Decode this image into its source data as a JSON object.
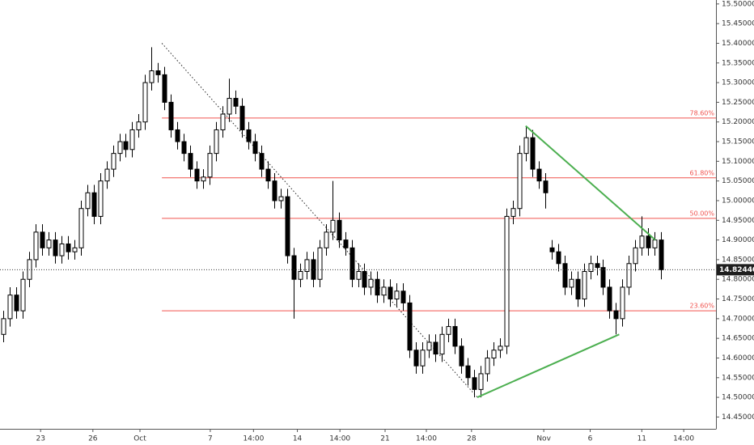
{
  "chart_data": {
    "type": "candlestick",
    "open": [
      14.66,
      14.7,
      14.76,
      14.72,
      14.8,
      14.85,
      14.92,
      14.88,
      14.9,
      14.86,
      14.89,
      14.87,
      14.88,
      14.98,
      15.02,
      14.96,
      15.05,
      15.08,
      15.12,
      15.15,
      15.13,
      15.18,
      15.2,
      15.3,
      15.33,
      15.32,
      15.25,
      15.18,
      15.15,
      15.12,
      15.08,
      15.05,
      15.06,
      15.12,
      15.18,
      15.22,
      15.26,
      15.24,
      15.18,
      15.15,
      15.12,
      15.08,
      15.05,
      15.0,
      15.01,
      14.86,
      14.8,
      14.82,
      14.85,
      14.8,
      14.88,
      14.92,
      14.95,
      14.9,
      14.88,
      14.8,
      14.82,
      14.78,
      14.8,
      14.76,
      14.78,
      14.75,
      14.77,
      14.74,
      14.62,
      14.58,
      14.62,
      14.64,
      14.61,
      14.66,
      14.68,
      14.63,
      14.58,
      14.55,
      14.52,
      14.56,
      14.6,
      14.62,
      14.63,
      14.96,
      14.98,
      15.12,
      15.16,
      15.08,
      15.05,
      14.88,
      14.87,
      14.84,
      14.78,
      14.8,
      14.75,
      14.82,
      14.84,
      14.83,
      14.78,
      14.72,
      14.7,
      14.78,
      14.84,
      14.88,
      14.91,
      14.88,
      14.9
    ],
    "high": [
      14.72,
      14.78,
      14.78,
      14.82,
      14.87,
      14.94,
      14.94,
      14.92,
      14.92,
      14.91,
      14.91,
      14.9,
      15.0,
      15.04,
      15.04,
      15.07,
      15.1,
      15.14,
      15.17,
      15.17,
      15.2,
      15.22,
      15.32,
      15.39,
      15.35,
      15.34,
      15.27,
      15.2,
      15.17,
      15.14,
      15.1,
      15.08,
      15.14,
      15.2,
      15.24,
      15.31,
      15.28,
      15.26,
      15.2,
      15.17,
      15.14,
      15.1,
      15.07,
      15.03,
      15.03,
      14.88,
      14.84,
      14.87,
      14.87,
      14.9,
      14.94,
      15.05,
      14.97,
      14.92,
      14.9,
      14.84,
      14.84,
      14.82,
      14.82,
      14.8,
      14.8,
      14.79,
      14.79,
      14.76,
      14.64,
      14.64,
      14.66,
      14.66,
      14.68,
      14.7,
      14.7,
      14.65,
      14.6,
      14.57,
      14.58,
      14.62,
      14.64,
      14.65,
      14.98,
      15.0,
      15.14,
      15.19,
      15.18,
      15.1,
      15.07,
      14.9,
      14.89,
      14.86,
      14.82,
      14.82,
      14.84,
      14.86,
      14.86,
      14.85,
      14.8,
      14.74,
      14.8,
      14.86,
      14.9,
      14.96,
      14.93,
      14.92,
      14.92
    ],
    "low": [
      14.64,
      14.68,
      14.7,
      14.7,
      14.78,
      14.83,
      14.86,
      14.86,
      14.84,
      14.84,
      14.85,
      14.85,
      14.86,
      14.96,
      14.94,
      14.94,
      15.03,
      15.06,
      15.1,
      15.11,
      15.11,
      15.16,
      15.18,
      15.28,
      15.3,
      15.23,
      15.16,
      15.13,
      15.1,
      15.06,
      15.03,
      15.03,
      15.04,
      15.1,
      15.16,
      15.2,
      15.22,
      15.16,
      15.13,
      15.1,
      15.06,
      15.03,
      14.98,
      14.98,
      14.84,
      14.7,
      14.78,
      14.8,
      14.78,
      14.78,
      14.86,
      14.9,
      14.88,
      14.86,
      14.78,
      14.78,
      14.76,
      14.76,
      14.74,
      14.74,
      14.73,
      14.73,
      14.72,
      14.6,
      14.56,
      14.56,
      14.6,
      14.59,
      14.59,
      14.64,
      14.61,
      14.56,
      14.53,
      14.5,
      14.5,
      14.54,
      14.58,
      14.6,
      14.61,
      14.94,
      14.96,
      15.1,
      15.06,
      15.03,
      14.98,
      14.85,
      14.82,
      14.76,
      14.76,
      14.73,
      14.73,
      14.8,
      14.81,
      14.76,
      14.7,
      14.66,
      14.68,
      14.76,
      14.82,
      14.86,
      14.86,
      14.86,
      14.8
    ],
    "close": [
      14.7,
      14.76,
      14.72,
      14.8,
      14.85,
      14.92,
      14.88,
      14.9,
      14.86,
      14.89,
      14.87,
      14.88,
      14.98,
      15.02,
      14.96,
      15.05,
      15.08,
      15.12,
      15.15,
      15.13,
      15.18,
      15.2,
      15.3,
      15.33,
      15.32,
      15.25,
      15.18,
      15.15,
      15.12,
      15.08,
      15.05,
      15.06,
      15.12,
      15.18,
      15.22,
      15.26,
      15.24,
      15.18,
      15.15,
      15.12,
      15.08,
      15.05,
      15.0,
      15.01,
      14.86,
      14.8,
      14.82,
      14.85,
      14.8,
      14.88,
      14.92,
      14.95,
      14.9,
      14.88,
      14.8,
      14.82,
      14.78,
      14.8,
      14.76,
      14.78,
      14.75,
      14.77,
      14.74,
      14.62,
      14.58,
      14.62,
      14.64,
      14.61,
      14.66,
      14.68,
      14.63,
      14.58,
      14.55,
      14.52,
      14.56,
      14.6,
      14.62,
      14.63,
      14.96,
      14.98,
      15.12,
      15.16,
      15.08,
      15.05,
      15.02,
      14.87,
      14.84,
      14.78,
      14.8,
      14.75,
      14.82,
      14.84,
      14.83,
      14.78,
      14.72,
      14.7,
      14.78,
      14.84,
      14.88,
      14.91,
      14.88,
      14.9,
      14.8244
    ],
    "up_color": "#ffffff",
    "down_color": "#000000",
    "xlim": [
      -0.5,
      110.5
    ],
    "xticks": [
      {
        "value": 5.8,
        "label": "23"
      },
      {
        "value": 13.9,
        "label": "26"
      },
      {
        "value": 21.2,
        "label": "Oct"
      },
      {
        "value": 32.1,
        "label": "7"
      },
      {
        "value": 38.8,
        "label": "14:00"
      },
      {
        "value": 45.6,
        "label": "14"
      },
      {
        "value": 52.2,
        "label": "14:00"
      },
      {
        "value": 59.2,
        "label": "21"
      },
      {
        "value": 65.6,
        "label": "14:00"
      },
      {
        "value": 72.6,
        "label": "28"
      },
      {
        "value": 83.8,
        "label": "Nov"
      },
      {
        "value": 91.0,
        "label": "6"
      },
      {
        "value": 99.0,
        "label": "11"
      },
      {
        "value": 105.5,
        "label": "14:00"
      }
    ],
    "ylim": [
      14.42,
      15.51
    ],
    "yticks": [
      {
        "value": 14.45,
        "label": "14.45000"
      },
      {
        "value": 14.5,
        "label": "14.50000"
      },
      {
        "value": 14.55,
        "label": "14.55000"
      },
      {
        "value": 14.6,
        "label": "14.60000"
      },
      {
        "value": 14.65,
        "label": "14.65000"
      },
      {
        "value": 14.7,
        "label": "14.70000"
      },
      {
        "value": 14.75,
        "label": "14.75000"
      },
      {
        "value": 14.8,
        "label": "14.80000"
      },
      {
        "value": 14.85,
        "label": "14.85000"
      },
      {
        "value": 14.9,
        "label": "14.90000"
      },
      {
        "value": 14.95,
        "label": "14.95000"
      },
      {
        "value": 15.0,
        "label": "15.00000"
      },
      {
        "value": 15.05,
        "label": "15.05000"
      },
      {
        "value": 15.1,
        "label": "15.10000"
      },
      {
        "value": 15.15,
        "label": "15.15000"
      },
      {
        "value": 15.2,
        "label": "15.20000"
      },
      {
        "value": 15.25,
        "label": "15.25000"
      },
      {
        "value": 15.3,
        "label": "15.30000"
      },
      {
        "value": 15.35,
        "label": "15.35000"
      },
      {
        "value": 15.4,
        "label": "15.40000"
      },
      {
        "value": 15.45,
        "label": "15.45000"
      },
      {
        "value": 15.5,
        "label": "15.50000"
      }
    ],
    "last_price": {
      "value": 14.8244,
      "label": "14.82440"
    },
    "fib_color": "#f0534f",
    "fib_start": 24.6,
    "fib_levels": [
      {
        "price": 15.21,
        "label": "78.60%"
      },
      {
        "price": 15.058,
        "label": "61.80%"
      },
      {
        "price": 14.955,
        "label": "50.00%"
      },
      {
        "price": 14.72,
        "label": "23.60%"
      }
    ],
    "fib_anchor": {
      "x": [
        24.6,
        73.5
      ],
      "y": [
        15.4,
        14.5
      ]
    },
    "trend_color": "#4caf50",
    "trendlines": [
      {
        "x": [
          81.0,
          101.1
        ],
        "y": [
          15.19,
          14.9
        ]
      },
      {
        "x": [
          73.5,
          95.5
        ],
        "y": [
          14.5,
          14.66
        ]
      }
    ]
  }
}
